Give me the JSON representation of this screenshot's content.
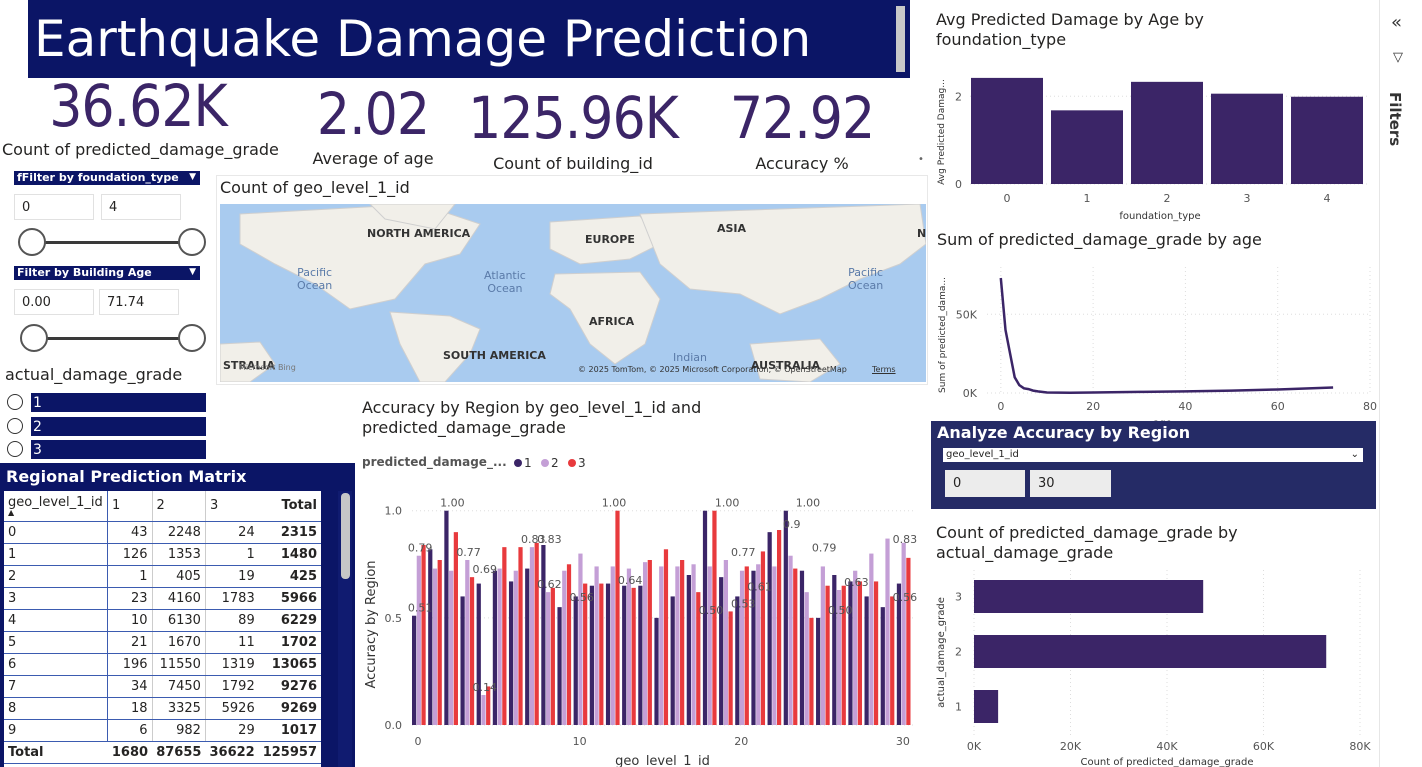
{
  "header": {
    "title": "Earthquake Damage Prediction"
  },
  "kpis": [
    {
      "value": "36.62K",
      "label": "Count of predicted_damage_grade"
    },
    {
      "value": "2.02",
      "label": "Average of age"
    },
    {
      "value": "125.96K",
      "label": "Count of building_id"
    },
    {
      "value": "72.92",
      "label": "Accuracy %"
    }
  ],
  "slicers": {
    "foundation": {
      "title": "fFilter by foundation_type",
      "min": "0",
      "max": "4"
    },
    "age": {
      "title": "Filter by Building Age",
      "min": "0.00",
      "max": "71.74"
    },
    "damage": {
      "title": "actual_damage_grade",
      "options": [
        "1",
        "2",
        "3"
      ]
    }
  },
  "map": {
    "title": "Count of geo_level_1_id",
    "labels": {
      "north_america": "NORTH AMERICA",
      "europe": "EUROPE",
      "asia": "ASIA",
      "n_edge": "N",
      "pacific_left": "Pacific\nOcean",
      "atlantic": "Atlantic\nOcean",
      "pacific_right": "Pacific\nOcean",
      "africa": "AFRICA",
      "south_america": "SOUTH AMERICA",
      "indian": "Indian",
      "australia_left": "STRALIA",
      "australia_right": "AUSTRALIA",
      "bing": "Microsoft Bing",
      "copyright": "© 2025 TomTom, © 2025 Microsoft Corporation, © OpenStreetMap",
      "terms": "Terms"
    }
  },
  "matrix": {
    "title": "Regional Prediction Matrix",
    "columns": [
      "geo_level_1_id",
      "1",
      "2",
      "3",
      "Total"
    ],
    "rows": [
      [
        "0",
        "43",
        "2248",
        "24",
        "2315"
      ],
      [
        "1",
        "126",
        "1353",
        "1",
        "1480"
      ],
      [
        "2",
        "1",
        "405",
        "19",
        "425"
      ],
      [
        "3",
        "23",
        "4160",
        "1783",
        "5966"
      ],
      [
        "4",
        "10",
        "6130",
        "89",
        "6229"
      ],
      [
        "5",
        "21",
        "1670",
        "11",
        "1702"
      ],
      [
        "6",
        "196",
        "11550",
        "1319",
        "13065"
      ],
      [
        "7",
        "34",
        "7450",
        "1792",
        "9276"
      ],
      [
        "8",
        "18",
        "3325",
        "5926",
        "9269"
      ],
      [
        "9",
        "6",
        "982",
        "29",
        "1017"
      ]
    ],
    "total": [
      "Total",
      "1680",
      "87655",
      "36622",
      "125957"
    ]
  },
  "analyze": {
    "title": "Analyze Accuracy by Region",
    "field": "geo_level_1_id",
    "min": "0",
    "max": "30"
  },
  "filters_pane": {
    "label": "Filters"
  },
  "colors": {
    "navy": "#0b1566",
    "series1": "#3b2567",
    "series2": "#c49fd6",
    "series3": "#e83a3d",
    "panel": "#252b66"
  },
  "chart_data": [
    {
      "id": "avg_damage_by_foundation",
      "type": "bar",
      "title": "Avg Predicted Damage by Age by foundation_type",
      "xlabel": "foundation_type",
      "ylabel": "Avg Predicted Damag...",
      "categories": [
        "0",
        "1",
        "2",
        "3",
        "4"
      ],
      "values": [
        2.42,
        1.68,
        2.33,
        2.06,
        1.99
      ],
      "ylim": [
        0,
        2.6
      ],
      "yticks": [
        "0",
        "2"
      ]
    },
    {
      "id": "sum_damage_by_age",
      "type": "line",
      "title": "Sum of predicted_damage_grade by age",
      "xlabel": "age",
      "ylabel": "Sum of predicted_dama...",
      "x": [
        0,
        1,
        2,
        3,
        4,
        5,
        6,
        7,
        8,
        10,
        15,
        20,
        30,
        40,
        50,
        60,
        72
      ],
      "y": [
        73000,
        40000,
        25000,
        10000,
        5000,
        3000,
        2500,
        1500,
        1000,
        300,
        200,
        300,
        700,
        1000,
        1500,
        2200,
        3500
      ],
      "xlim": [
        -3,
        80
      ],
      "ylim": [
        0,
        80000
      ],
      "xticks": [
        "0",
        "20",
        "40",
        "60",
        "80"
      ],
      "yticks": [
        "0K",
        "50K"
      ]
    },
    {
      "id": "accuracy_by_region",
      "type": "bar",
      "title": "Accuracy by Region by geo_level_1_id and predicted_damage_grade",
      "xlabel": "geo_level_1_id",
      "ylabel": "Accuracy by Region",
      "legend_title": "predicted_damage_...",
      "categories": [
        "0",
        "1",
        "2",
        "3",
        "4",
        "5",
        "6",
        "7",
        "8",
        "9",
        "10",
        "11",
        "12",
        "13",
        "14",
        "15",
        "16",
        "17",
        "18",
        "19",
        "20",
        "21",
        "22",
        "23",
        "24",
        "25",
        "26",
        "27",
        "28",
        "29",
        "30"
      ],
      "series": [
        {
          "name": "1",
          "values": [
            0.51,
            0.82,
            1.0,
            0.6,
            0.66,
            0.72,
            0.67,
            0.73,
            0.84,
            0.55,
            0.6,
            0.65,
            0.66,
            0.65,
            0.65,
            0.5,
            0.6,
            0.7,
            1.0,
            0.69,
            0.6,
            0.72,
            0.9,
            1.0,
            0.72,
            0.5,
            0.7,
            0.67,
            0.6,
            0.55,
            0.66
          ]
        },
        {
          "name": "2",
          "values": [
            0.79,
            0.73,
            0.72,
            0.77,
            0.14,
            0.73,
            0.72,
            0.83,
            0.62,
            0.72,
            0.8,
            0.74,
            0.74,
            0.73,
            0.76,
            0.74,
            0.74,
            0.75,
            0.74,
            0.77,
            0.72,
            0.75,
            0.74,
            0.79,
            0.62,
            0.74,
            0.63,
            0.72,
            0.8,
            0.87,
            0.85
          ]
        },
        {
          "name": "3",
          "values": [
            0.84,
            0.77,
            0.9,
            0.69,
            0.18,
            0.83,
            0.83,
            0.85,
            0.64,
            0.75,
            0.66,
            0.66,
            1.0,
            0.64,
            0.77,
            0.82,
            0.77,
            0.62,
            1.0,
            0.53,
            0.74,
            0.81,
            0.91,
            0.73,
            0.5,
            0.65,
            0.65,
            0.67,
            0.67,
            0.6,
            0.78
          ]
        }
      ],
      "data_labels": [
        {
          "cat": 0,
          "text": "0.79"
        },
        {
          "cat": 0,
          "text": "0.51"
        },
        {
          "cat": 2,
          "text": "1.00"
        },
        {
          "cat": 3,
          "text": "0.77"
        },
        {
          "cat": 4,
          "text": "0.69"
        },
        {
          "cat": 4,
          "text": "0.14"
        },
        {
          "cat": 7,
          "text": "0.83"
        },
        {
          "cat": 8,
          "text": "0.83"
        },
        {
          "cat": 8,
          "text": "0.62"
        },
        {
          "cat": 10,
          "text": "0.56"
        },
        {
          "cat": 12,
          "text": "1.00"
        },
        {
          "cat": 13,
          "text": "0.64"
        },
        {
          "cat": 18,
          "text": "0.50"
        },
        {
          "cat": 19,
          "text": "1.00"
        },
        {
          "cat": 20,
          "text": "0.77"
        },
        {
          "cat": 20,
          "text": "0.53"
        },
        {
          "cat": 21,
          "text": "0.61"
        },
        {
          "cat": 23,
          "text": "0.9"
        },
        {
          "cat": 24,
          "text": "1.00"
        },
        {
          "cat": 25,
          "text": "0.79"
        },
        {
          "cat": 26,
          "text": "0.50"
        },
        {
          "cat": 27,
          "text": "0.63"
        },
        {
          "cat": 30,
          "text": "0.83"
        },
        {
          "cat": 30,
          "text": "0.56"
        }
      ],
      "ylim": [
        0,
        1.05
      ],
      "xticks": [
        "0",
        "10",
        "20",
        "30"
      ],
      "yticks": [
        "0.0",
        "0.5",
        "1.0"
      ]
    },
    {
      "id": "count_by_actual",
      "type": "bar",
      "orientation": "horizontal",
      "title": "Count of predicted_damage_grade by actual_damage_grade",
      "xlabel": "Count of predicted_damage_grade",
      "ylabel": "actual_damage_grade",
      "categories": [
        "3",
        "2",
        "1"
      ],
      "values": [
        47500,
        73000,
        5000
      ],
      "xlim": [
        0,
        80000
      ],
      "xticks": [
        "0K",
        "20K",
        "40K",
        "60K",
        "80K"
      ]
    }
  ]
}
